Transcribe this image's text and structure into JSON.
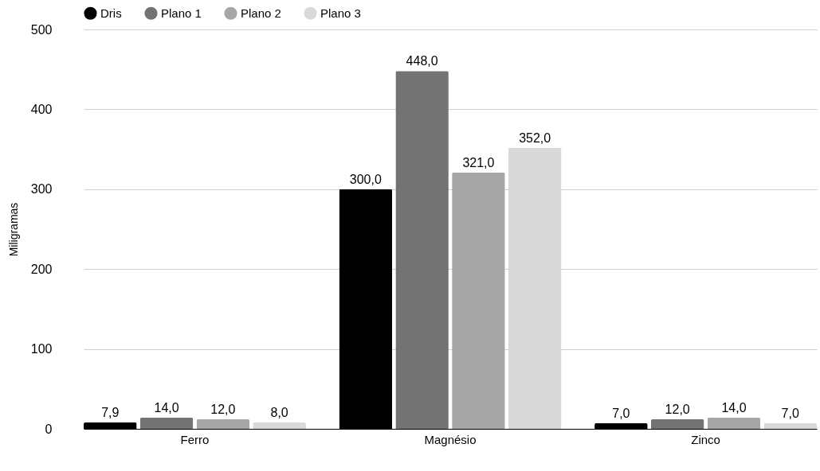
{
  "chart_data": {
    "type": "bar",
    "ylabel": "Miligramas",
    "categories": [
      "Ferro",
      "Magnésio",
      "Zinco"
    ],
    "series": [
      {
        "name": "Dris",
        "color": "#000000",
        "values": [
          7.9,
          300,
          7
        ],
        "value_labels": [
          "7,9",
          "300,0",
          "7,0"
        ]
      },
      {
        "name": "Plano 1",
        "color": "#737373",
        "values": [
          14,
          448,
          12
        ],
        "value_labels": [
          "14,0",
          "448,0",
          "12,0"
        ]
      },
      {
        "name": "Plano 2",
        "color": "#a6a6a6",
        "values": [
          12,
          321,
          14
        ],
        "value_labels": [
          "12,0",
          "321,0",
          "14,0"
        ]
      },
      {
        "name": "Plano 3",
        "color": "#d9d9d9",
        "values": [
          8,
          352,
          7
        ],
        "value_labels": [
          "8,0",
          "352,0",
          "7,0"
        ]
      }
    ],
    "ylim": [
      0,
      500
    ],
    "yticks": [
      0,
      100,
      200,
      300,
      400,
      500
    ],
    "grid": "y",
    "legend": "top"
  }
}
